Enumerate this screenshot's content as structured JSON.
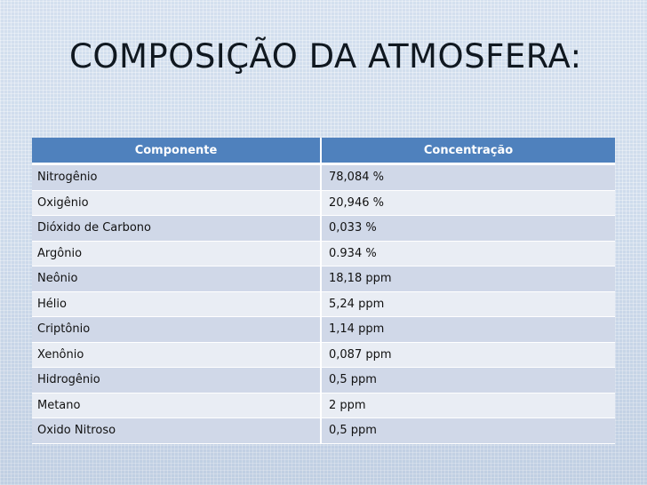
{
  "slide": {
    "title": "COMPOSIÇÃO DA ATMOSFERA:"
  },
  "table": {
    "headers": [
      "Componente",
      "Concentração"
    ],
    "rows": [
      [
        "Nitrogênio",
        "78,084 %"
      ],
      [
        "Oxigênio",
        "20,946 %"
      ],
      [
        "Dióxido de Carbono",
        "0,033 %"
      ],
      [
        "Argônio",
        "0.934 %"
      ],
      [
        "Neônio",
        "18,18 ppm"
      ],
      [
        "Hélio",
        "5,24 ppm"
      ],
      [
        "Criptônio",
        "1,14 ppm"
      ],
      [
        "Xenônio",
        "0,087 ppm"
      ],
      [
        "Hidrogênio",
        "0,5 ppm"
      ],
      [
        "Metano",
        "2 ppm"
      ],
      [
        "Oxido Nitroso",
        "0,5 ppm"
      ]
    ]
  },
  "colors": {
    "header_fill": "#4f81bd",
    "row_band_dark": "#d0d8e8",
    "row_band_light": "#e9edf4",
    "background": "#cfdcec"
  }
}
